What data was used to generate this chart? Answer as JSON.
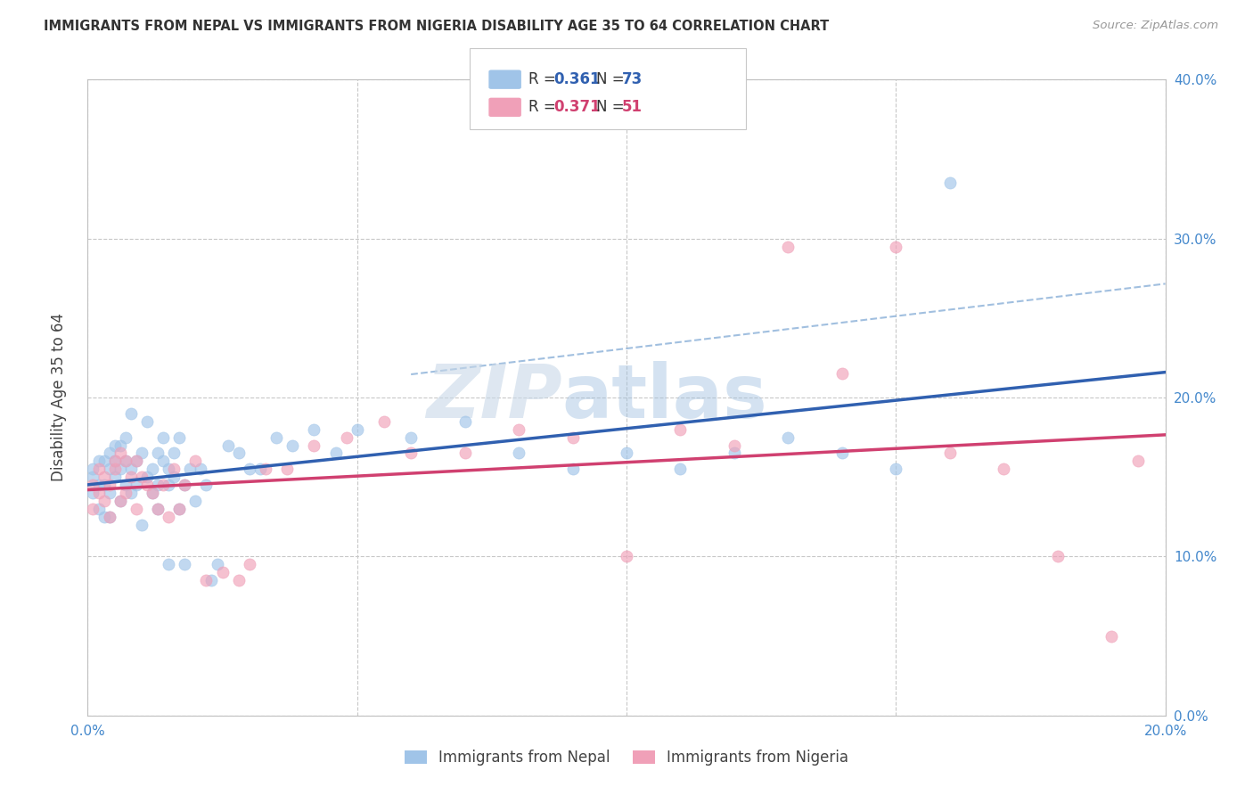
{
  "title": "IMMIGRANTS FROM NEPAL VS IMMIGRANTS FROM NIGERIA DISABILITY AGE 35 TO 64 CORRELATION CHART",
  "source": "Source: ZipAtlas.com",
  "ylabel": "Disability Age 35 to 64",
  "legend_label_1": "Immigrants from Nepal",
  "legend_label_2": "Immigrants from Nigeria",
  "r1": 0.361,
  "n1": 73,
  "r2": 0.371,
  "n2": 51,
  "color1": "#a0c4e8",
  "color2": "#f0a0b8",
  "line_color1": "#3060b0",
  "line_color2": "#d04070",
  "dash_color": "#8ab0d8",
  "xlim": [
    0.0,
    0.2
  ],
  "ylim": [
    0.0,
    0.4
  ],
  "xticks": [
    0.0,
    0.05,
    0.1,
    0.15,
    0.2
  ],
  "yticks": [
    0.0,
    0.1,
    0.2,
    0.3,
    0.4
  ],
  "nepal_x": [
    0.001,
    0.001,
    0.001,
    0.002,
    0.002,
    0.002,
    0.003,
    0.003,
    0.003,
    0.004,
    0.004,
    0.004,
    0.004,
    0.005,
    0.005,
    0.005,
    0.006,
    0.006,
    0.006,
    0.007,
    0.007,
    0.007,
    0.008,
    0.008,
    0.008,
    0.009,
    0.009,
    0.01,
    0.01,
    0.011,
    0.011,
    0.012,
    0.012,
    0.013,
    0.013,
    0.013,
    0.014,
    0.014,
    0.015,
    0.015,
    0.015,
    0.016,
    0.016,
    0.017,
    0.017,
    0.018,
    0.018,
    0.019,
    0.02,
    0.021,
    0.022,
    0.023,
    0.024,
    0.026,
    0.028,
    0.03,
    0.032,
    0.035,
    0.038,
    0.042,
    0.046,
    0.05,
    0.06,
    0.07,
    0.08,
    0.09,
    0.1,
    0.11,
    0.12,
    0.13,
    0.14,
    0.15,
    0.16
  ],
  "nepal_y": [
    0.14,
    0.15,
    0.155,
    0.145,
    0.13,
    0.16,
    0.125,
    0.145,
    0.16,
    0.14,
    0.155,
    0.165,
    0.125,
    0.15,
    0.16,
    0.17,
    0.135,
    0.155,
    0.17,
    0.145,
    0.16,
    0.175,
    0.14,
    0.155,
    0.19,
    0.145,
    0.16,
    0.12,
    0.165,
    0.15,
    0.185,
    0.14,
    0.155,
    0.145,
    0.13,
    0.165,
    0.16,
    0.175,
    0.145,
    0.155,
    0.095,
    0.15,
    0.165,
    0.13,
    0.175,
    0.145,
    0.095,
    0.155,
    0.135,
    0.155,
    0.145,
    0.085,
    0.095,
    0.17,
    0.165,
    0.155,
    0.155,
    0.175,
    0.17,
    0.18,
    0.165,
    0.18,
    0.175,
    0.185,
    0.165,
    0.155,
    0.165,
    0.155,
    0.165,
    0.175,
    0.165,
    0.155,
    0.335
  ],
  "nigeria_x": [
    0.001,
    0.001,
    0.002,
    0.002,
    0.003,
    0.003,
    0.004,
    0.004,
    0.005,
    0.005,
    0.006,
    0.006,
    0.007,
    0.007,
    0.008,
    0.009,
    0.009,
    0.01,
    0.011,
    0.012,
    0.013,
    0.014,
    0.015,
    0.016,
    0.017,
    0.018,
    0.02,
    0.022,
    0.025,
    0.028,
    0.03,
    0.033,
    0.037,
    0.042,
    0.048,
    0.055,
    0.06,
    0.07,
    0.08,
    0.09,
    0.1,
    0.11,
    0.12,
    0.13,
    0.14,
    0.15,
    0.16,
    0.17,
    0.18,
    0.19,
    0.195
  ],
  "nigeria_y": [
    0.13,
    0.145,
    0.14,
    0.155,
    0.135,
    0.15,
    0.125,
    0.145,
    0.155,
    0.16,
    0.135,
    0.165,
    0.14,
    0.16,
    0.15,
    0.13,
    0.16,
    0.15,
    0.145,
    0.14,
    0.13,
    0.145,
    0.125,
    0.155,
    0.13,
    0.145,
    0.16,
    0.085,
    0.09,
    0.085,
    0.095,
    0.155,
    0.155,
    0.17,
    0.175,
    0.185,
    0.165,
    0.165,
    0.18,
    0.175,
    0.1,
    0.18,
    0.17,
    0.295,
    0.215,
    0.295,
    0.165,
    0.155,
    0.1,
    0.05,
    0.16
  ],
  "watermark_zip": "ZIP",
  "watermark_atlas": "atlas",
  "background_color": "#ffffff",
  "grid_color": "#c8c8c8"
}
